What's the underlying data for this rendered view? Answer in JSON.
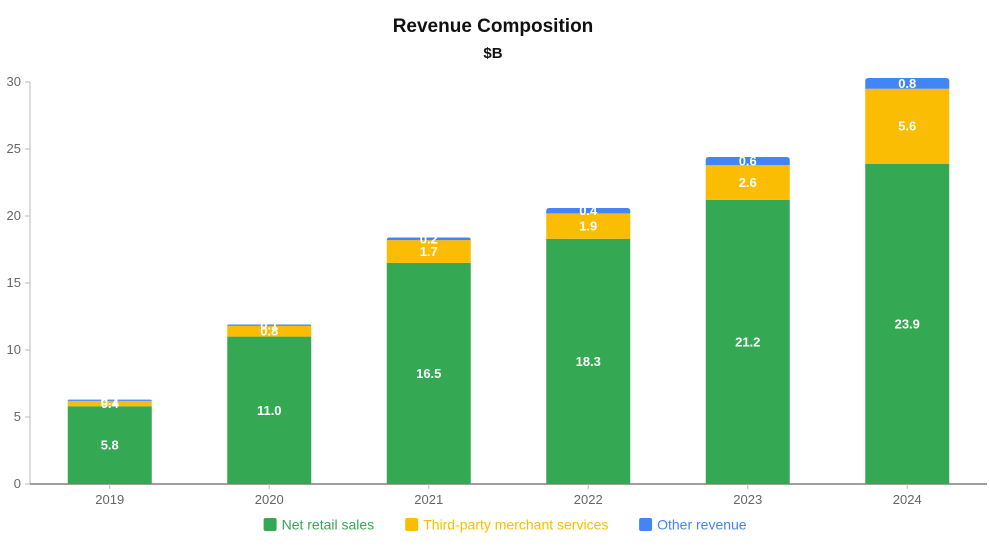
{
  "chart_data": {
    "type": "bar",
    "stacked": true,
    "title": "Revenue Composition",
    "subtitle": "$B",
    "xlabel": "",
    "ylabel": "",
    "ylim": [
      0,
      30
    ],
    "yticks": [
      0,
      5,
      10,
      15,
      20,
      25,
      30
    ],
    "categories": [
      "2019",
      "2020",
      "2021",
      "2022",
      "2023",
      "2024"
    ],
    "series": [
      {
        "name": "Net retail sales",
        "color": "#34a853",
        "values": [
          5.8,
          11.0,
          16.5,
          18.3,
          21.2,
          23.9
        ],
        "labels": [
          "5.8",
          "11.0",
          "16.5",
          "18.3",
          "21.2",
          "23.9"
        ]
      },
      {
        "name": "Third-party merchant services",
        "color": "#fbbc04",
        "values": [
          0.4,
          0.8,
          1.7,
          1.9,
          2.6,
          5.6
        ],
        "labels": [
          "0.4",
          "0.8",
          "1.7",
          "1.9",
          "2.6",
          "5.6"
        ]
      },
      {
        "name": "Other revenue",
        "color": "#4285f4",
        "values": [
          0.1,
          0.1,
          0.2,
          0.4,
          0.6,
          0.8
        ],
        "labels": [
          "0.1",
          "0.1",
          "0.2",
          "0.4",
          "0.6",
          "0.8"
        ]
      }
    ],
    "legend_position": "bottom-center",
    "grid": false
  }
}
